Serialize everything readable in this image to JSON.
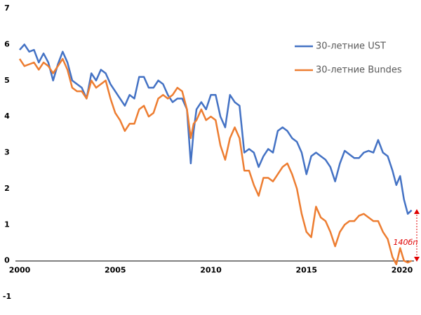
{
  "chart_data": {
    "type": "line",
    "annotation": "140бп",
    "legend": "upper right",
    "xlim": [
      2000,
      2020
    ],
    "xticks": [
      2000,
      2005,
      2010,
      2015,
      2020
    ],
    "ylim": [
      -1,
      7
    ],
    "yticks": [
      -1,
      0,
      1,
      2,
      3,
      4,
      5,
      6,
      7
    ],
    "x": [
      2000,
      2000.25,
      2000.5,
      2000.75,
      2001,
      2001.25,
      2001.5,
      2001.75,
      2002,
      2002.25,
      2002.5,
      2002.75,
      2003,
      2003.25,
      2003.5,
      2003.75,
      2004,
      2004.25,
      2004.5,
      2004.75,
      2005,
      2005.25,
      2005.5,
      2005.75,
      2006,
      2006.25,
      2006.5,
      2006.75,
      2007,
      2007.25,
      2007.5,
      2007.75,
      2008,
      2008.25,
      2008.5,
      2008.75,
      2008.95,
      2009.1,
      2009.25,
      2009.5,
      2009.75,
      2010,
      2010.25,
      2010.5,
      2010.75,
      2011,
      2011.25,
      2011.5,
      2011.75,
      2012,
      2012.25,
      2012.5,
      2012.75,
      2013,
      2013.25,
      2013.5,
      2013.75,
      2014,
      2014.25,
      2014.5,
      2014.75,
      2015,
      2015.25,
      2015.5,
      2015.75,
      2016,
      2016.25,
      2016.5,
      2016.75,
      2017,
      2017.25,
      2017.5,
      2017.75,
      2018,
      2018.25,
      2018.5,
      2018.75,
      2019,
      2019.25,
      2019.5,
      2019.7,
      2019.9,
      2020.1,
      2020.3,
      2020.5
    ],
    "series": [
      {
        "name": "30-летние UST",
        "color": "#4472c4",
        "values": [
          5.85,
          6.0,
          5.8,
          5.85,
          5.5,
          5.75,
          5.5,
          5.0,
          5.45,
          5.8,
          5.5,
          5.0,
          4.9,
          4.8,
          4.5,
          5.2,
          5.0,
          5.3,
          5.2,
          4.9,
          4.7,
          4.5,
          4.3,
          4.6,
          4.5,
          5.1,
          5.1,
          4.8,
          4.8,
          5.0,
          4.9,
          4.6,
          4.4,
          4.5,
          4.5,
          4.2,
          2.7,
          3.6,
          4.2,
          4.4,
          4.2,
          4.6,
          4.6,
          4.0,
          3.7,
          4.6,
          4.4,
          4.3,
          3.0,
          3.1,
          3.0,
          2.6,
          2.9,
          3.1,
          3.0,
          3.6,
          3.7,
          3.6,
          3.4,
          3.3,
          3.0,
          2.4,
          2.9,
          3.0,
          2.9,
          2.8,
          2.6,
          2.2,
          2.7,
          3.05,
          2.95,
          2.85,
          2.85,
          3.0,
          3.05,
          3.0,
          3.35,
          3.0,
          2.9,
          2.5,
          2.1,
          2.35,
          1.7,
          1.3,
          1.4
        ]
      },
      {
        "name": "30-летние Bundes",
        "color": "#ed7d31",
        "values": [
          5.6,
          5.4,
          5.45,
          5.5,
          5.3,
          5.5,
          5.4,
          5.2,
          5.4,
          5.6,
          5.3,
          4.8,
          4.7,
          4.7,
          4.5,
          5.0,
          4.8,
          4.9,
          5.0,
          4.5,
          4.1,
          3.9,
          3.6,
          3.8,
          3.8,
          4.2,
          4.3,
          4.0,
          4.1,
          4.5,
          4.6,
          4.5,
          4.6,
          4.8,
          4.7,
          4.2,
          3.4,
          3.8,
          3.9,
          4.2,
          3.9,
          4.0,
          3.9,
          3.2,
          2.8,
          3.4,
          3.7,
          3.4,
          2.5,
          2.5,
          2.1,
          1.8,
          2.3,
          2.3,
          2.2,
          2.4,
          2.6,
          2.7,
          2.4,
          2.0,
          1.3,
          0.8,
          0.65,
          1.5,
          1.2,
          1.1,
          0.8,
          0.4,
          0.8,
          1.0,
          1.1,
          1.1,
          1.25,
          1.3,
          1.2,
          1.1,
          1.1,
          0.8,
          0.6,
          0.1,
          -0.1,
          0.35,
          0.0,
          -0.05,
          0.0
        ]
      }
    ]
  }
}
